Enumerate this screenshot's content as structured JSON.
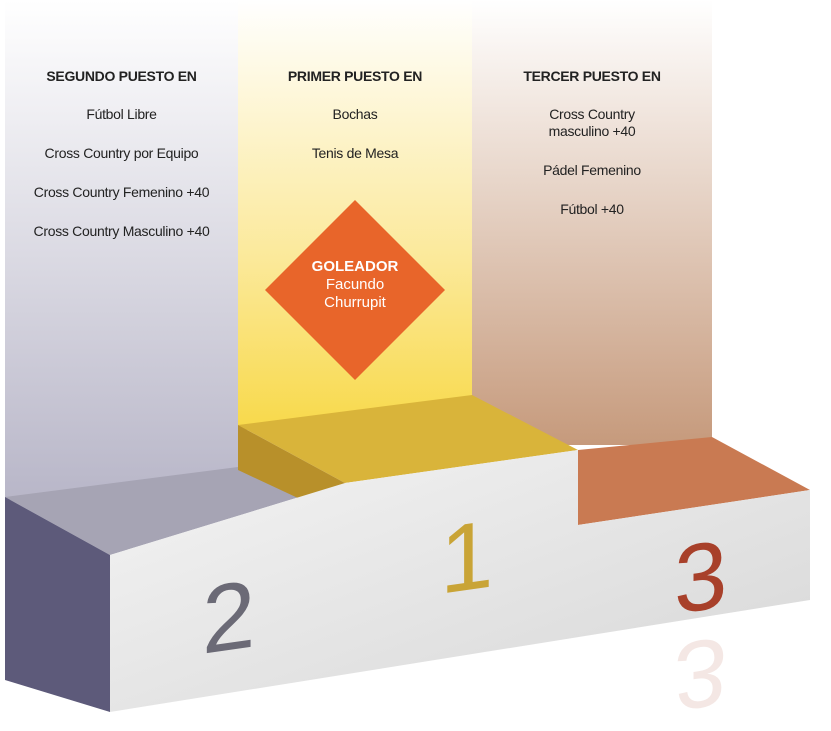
{
  "columns": [
    {
      "heading": "SEGUNDO PUESTO EN",
      "items": [
        "Fútbol Libre",
        "Cross Country por Equipo",
        "Cross Country Femenino +40",
        "Cross Country Masculino +40"
      ],
      "place": "2"
    },
    {
      "heading": "PRIMER PUESTO EN",
      "items": [
        "Bochas",
        "Tenis de Mesa"
      ],
      "place": "1"
    },
    {
      "heading": "TERCER PUESTO EN",
      "items": [
        "Cross Country masculino +40",
        "Pádel Femenino",
        "Fútbol +40"
      ],
      "place": "3"
    }
  ],
  "goleador": {
    "label": "GOLEADOR",
    "name": "Facundo Churrupit"
  }
}
